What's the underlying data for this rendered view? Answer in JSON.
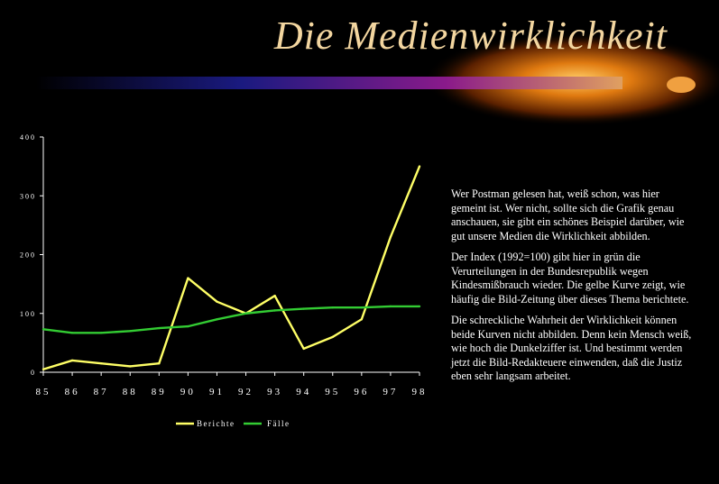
{
  "slide": {
    "title": "Die Medienwirklichkeit",
    "paragraphs": [
      "Wer Postman gelesen hat, weiß schon, was hier gemeint ist. Wer nicht, sollte sich die Grafik genau anschauen, sie gibt ein schönes Beispiel darüber, wie gut unsere Medien die Wirklichkeit abbilden.",
      "Der Index (1992=100) gibt hier in grün die Verurteilungen in der Bundesrepublik wegen Kindesmißbrauch wieder. Die gelbe Kurve zeigt, wie häufig die Bild-Zeitung über dieses Thema berichtete.",
      "Die schreckliche Wahrheit der Wirklichkeit können beide Kurven nicht abbilden. Denn kein Mensch weiß, wie hoch die Dunkelziffer ist. Und bestimmt werden jetzt die Bild-Redakteuere einwenden, daß die Justiz eben sehr langsam arbeitet."
    ]
  },
  "chart_data": {
    "type": "line",
    "x": [
      "85",
      "86",
      "87",
      "88",
      "89",
      "90",
      "91",
      "92",
      "93",
      "94",
      "95",
      "96",
      "97",
      "98"
    ],
    "yticks": [
      "0",
      "100",
      "200",
      "300",
      "400"
    ],
    "ylim": [
      0,
      400
    ],
    "grid": false,
    "legend_position": "bottom",
    "series": [
      {
        "name": "Berichte",
        "color": "#ffff66",
        "values": [
          5,
          20,
          15,
          10,
          15,
          160,
          120,
          100,
          130,
          40,
          60,
          90,
          230,
          350
        ]
      },
      {
        "name": "Fälle",
        "color": "#33cc33",
        "values": [
          73,
          67,
          67,
          70,
          75,
          78,
          90,
          100,
          105,
          108,
          110,
          110,
          112,
          112
        ]
      }
    ]
  }
}
